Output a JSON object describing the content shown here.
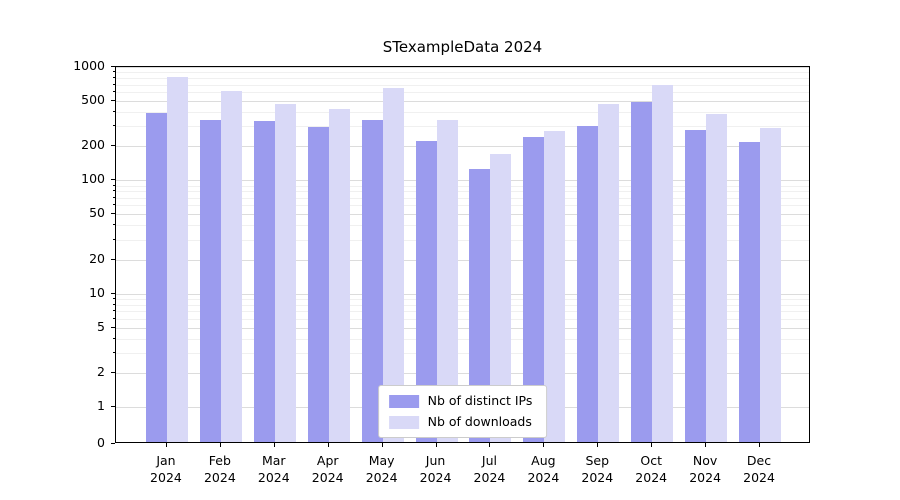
{
  "title": "STexampleData 2024",
  "chart_data": {
    "type": "bar",
    "title": "STexampleData 2024",
    "xlabel": "",
    "ylabel": "",
    "yscale": "symlog",
    "ylim": [
      0,
      1000
    ],
    "yticks": [
      0,
      1,
      2,
      5,
      10,
      20,
      50,
      100,
      200,
      500,
      1000
    ],
    "grid": true,
    "legend_position": "lower center",
    "year_label": "2024",
    "categories": [
      "Jan",
      "Feb",
      "Mar",
      "Apr",
      "May",
      "Jun",
      "Jul",
      "Aug",
      "Sep",
      "Oct",
      "Nov",
      "Dec"
    ],
    "series": [
      {
        "name": "Nb of distinct IPs",
        "color": "#9b9bee",
        "values": [
          380,
          330,
          320,
          285,
          330,
          215,
          120,
          230,
          290,
          470,
          265,
          210
        ]
      },
      {
        "name": "Nb of downloads",
        "color": "#d9d9f7",
        "values": [
          780,
          590,
          450,
          410,
          630,
          330,
          165,
          260,
          455,
          670,
          370,
          280
        ]
      }
    ]
  }
}
